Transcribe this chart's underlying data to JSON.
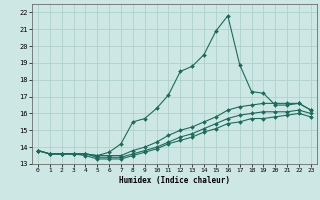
{
  "title": "",
  "xlabel": "Humidex (Indice chaleur)",
  "bg_color": "#cde8e4",
  "grid_color": "#aaccc7",
  "line_color": "#1a6b5a",
  "xlim": [
    -0.5,
    23.5
  ],
  "ylim": [
    13,
    22.5
  ],
  "yticks": [
    13,
    14,
    15,
    16,
    17,
    18,
    19,
    20,
    21,
    22
  ],
  "xticks": [
    0,
    1,
    2,
    3,
    4,
    5,
    6,
    7,
    8,
    9,
    10,
    11,
    12,
    13,
    14,
    15,
    16,
    17,
    18,
    19,
    20,
    21,
    22,
    23
  ],
  "line1_x": [
    0,
    1,
    2,
    3,
    4,
    5,
    6,
    7,
    8,
    9,
    10,
    11,
    12,
    13,
    14,
    15,
    16,
    17,
    18,
    19,
    20,
    21,
    22,
    23
  ],
  "line1_y": [
    13.8,
    13.6,
    13.6,
    13.6,
    13.6,
    13.5,
    13.7,
    14.2,
    15.5,
    15.7,
    16.3,
    17.1,
    18.5,
    18.8,
    19.5,
    20.9,
    21.8,
    18.9,
    17.3,
    17.2,
    16.5,
    16.5,
    16.6,
    16.2
  ],
  "line2_x": [
    0,
    1,
    2,
    3,
    4,
    5,
    6,
    7,
    8,
    9,
    10,
    11,
    12,
    13,
    14,
    15,
    16,
    17,
    18,
    19,
    20,
    21,
    22,
    23
  ],
  "line2_y": [
    13.8,
    13.6,
    13.6,
    13.6,
    13.6,
    13.5,
    13.5,
    13.5,
    13.8,
    14.0,
    14.3,
    14.7,
    15.0,
    15.2,
    15.5,
    15.8,
    16.2,
    16.4,
    16.5,
    16.6,
    16.6,
    16.6,
    16.6,
    16.2
  ],
  "line3_x": [
    0,
    1,
    2,
    3,
    4,
    5,
    6,
    7,
    8,
    9,
    10,
    11,
    12,
    13,
    14,
    15,
    16,
    17,
    18,
    19,
    20,
    21,
    22,
    23
  ],
  "line3_y": [
    13.8,
    13.6,
    13.6,
    13.6,
    13.6,
    13.4,
    13.4,
    13.4,
    13.6,
    13.8,
    14.0,
    14.3,
    14.6,
    14.8,
    15.1,
    15.4,
    15.7,
    15.9,
    16.0,
    16.1,
    16.1,
    16.1,
    16.2,
    16.0
  ],
  "line4_x": [
    0,
    1,
    2,
    3,
    4,
    5,
    6,
    7,
    8,
    9,
    10,
    11,
    12,
    13,
    14,
    15,
    16,
    17,
    18,
    19,
    20,
    21,
    22,
    23
  ],
  "line4_y": [
    13.8,
    13.6,
    13.6,
    13.6,
    13.5,
    13.3,
    13.3,
    13.3,
    13.5,
    13.7,
    13.9,
    14.2,
    14.4,
    14.6,
    14.9,
    15.1,
    15.4,
    15.5,
    15.7,
    15.7,
    15.8,
    15.9,
    16.0,
    15.8
  ]
}
